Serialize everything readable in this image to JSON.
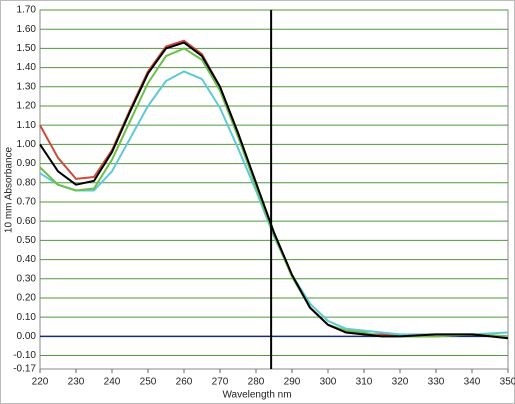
{
  "chart_data": {
    "type": "line",
    "x_label": "Wavelength nm",
    "y_label": "10 mm Absorbance",
    "x": [
      220,
      225,
      230,
      235,
      240,
      245,
      250,
      255,
      260,
      265,
      270,
      275,
      280,
      285,
      290,
      295,
      300,
      305,
      310,
      315,
      320,
      330,
      340,
      350
    ],
    "series": [
      {
        "color": "#cc4a3c",
        "values": [
          1.1,
          0.93,
          0.82,
          0.83,
          0.97,
          1.18,
          1.38,
          1.51,
          1.54,
          1.47,
          1.3,
          1.06,
          0.8,
          0.54,
          0.32,
          0.15,
          0.06,
          0.02,
          0.01,
          0.01,
          0.0,
          0.0,
          0.01,
          0.0
        ]
      },
      {
        "color": "#5fc9d6",
        "values": [
          0.85,
          0.79,
          0.76,
          0.76,
          0.86,
          1.03,
          1.2,
          1.33,
          1.38,
          1.34,
          1.19,
          0.98,
          0.76,
          0.52,
          0.32,
          0.17,
          0.08,
          0.04,
          0.03,
          0.02,
          0.01,
          0.01,
          0.01,
          0.02
        ]
      },
      {
        "color": "#6cc04a",
        "values": [
          0.88,
          0.79,
          0.76,
          0.77,
          0.92,
          1.12,
          1.32,
          1.46,
          1.5,
          1.44,
          1.28,
          1.04,
          0.78,
          0.53,
          0.31,
          0.15,
          0.06,
          0.03,
          0.02,
          0.0,
          0.0,
          0.0,
          0.01,
          0.0
        ]
      },
      {
        "color": "#000000",
        "values": [
          1.0,
          0.86,
          0.79,
          0.81,
          0.96,
          1.17,
          1.37,
          1.5,
          1.53,
          1.46,
          1.3,
          1.06,
          0.8,
          0.54,
          0.32,
          0.15,
          0.06,
          0.02,
          0.01,
          0.0,
          0.0,
          0.01,
          0.01,
          -0.01
        ]
      }
    ],
    "xlim": [
      220,
      350
    ],
    "xticks": [
      220,
      230,
      240,
      250,
      260,
      270,
      280,
      290,
      300,
      310,
      320,
      330,
      340,
      350
    ],
    "ylim": [
      -0.17,
      1.7
    ],
    "yticks": [
      {
        "value": 1.7,
        "label": "1.70"
      },
      {
        "value": 1.6,
        "label": "1.60"
      },
      {
        "value": 1.5,
        "label": "1.50"
      },
      {
        "value": 1.4,
        "label": "1.40"
      },
      {
        "value": 1.3,
        "label": "1.30"
      },
      {
        "value": 1.2,
        "label": "1.20"
      },
      {
        "value": 1.1,
        "label": "1.10"
      },
      {
        "value": 1.0,
        "label": "1.00"
      },
      {
        "value": 0.9,
        "label": "0.90"
      },
      {
        "value": 0.8,
        "label": "0.80"
      },
      {
        "value": 0.7,
        "label": "0.70"
      },
      {
        "value": 0.6,
        "label": "0.60"
      },
      {
        "value": 0.5,
        "label": "0.50"
      },
      {
        "value": 0.4,
        "label": "0.40"
      },
      {
        "value": 0.3,
        "label": "0.30"
      },
      {
        "value": 0.2,
        "label": "0.20"
      },
      {
        "value": 0.1,
        "label": "0.10"
      },
      {
        "value": 0,
        "label": "0.00"
      },
      {
        "value": -0.1,
        "label": "-0.10"
      },
      -0.17
    ],
    "grid": true,
    "grid_color": "#4e9a3a",
    "zero_line_color": "#1a2a7a",
    "marker_x": 284.2
  }
}
